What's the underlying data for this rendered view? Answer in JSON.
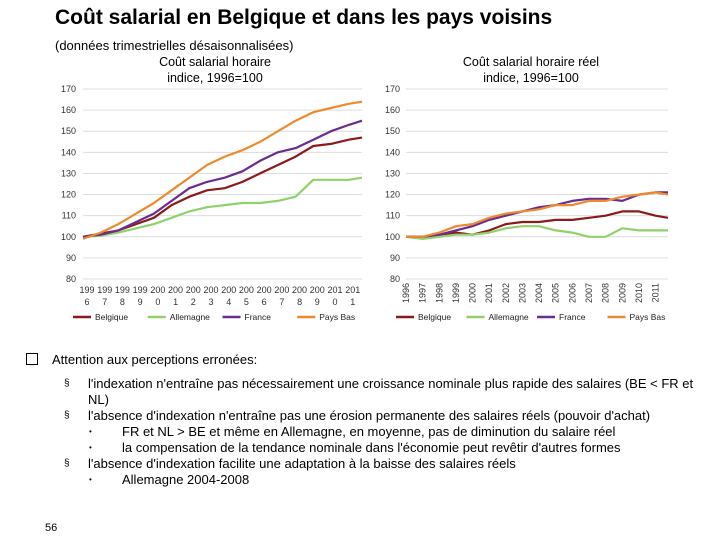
{
  "slide": {
    "title": "Coût salarial en Belgique et dans les pays voisins",
    "subtitle": "(données trimestrielles désaisonnalisées)",
    "page_number": "56"
  },
  "colors": {
    "Belgique": "#8b1a1a",
    "Allemagne": "#8fd16b",
    "France": "#6a2c8f",
    "Pays Bas": "#ee8a2e"
  },
  "chart_data": [
    {
      "type": "line",
      "title": "Coût salarial horaire indice, 1996=100",
      "title_lines": [
        "Coût salarial horaire",
        "indice, 1996=100"
      ],
      "ylim": [
        80,
        170
      ],
      "yticks": [
        "80",
        "90",
        "100",
        "110",
        "120",
        "130",
        "140",
        "150",
        "160",
        "170"
      ],
      "xlim": [
        1996,
        2011.75
      ],
      "xticks": [
        {
          "x": 1996,
          "l1": "199",
          "l2": "6"
        },
        {
          "x": 1997,
          "l1": "199",
          "l2": "7"
        },
        {
          "x": 1998,
          "l1": "199",
          "l2": "8"
        },
        {
          "x": 1999,
          "l1": "199",
          "l2": "9"
        },
        {
          "x": 2000,
          "l1": "200",
          "l2": "0"
        },
        {
          "x": 2001,
          "l1": "200",
          "l2": "1"
        },
        {
          "x": 2002,
          "l1": "200",
          "l2": "2"
        },
        {
          "x": 2003,
          "l1": "200",
          "l2": "3"
        },
        {
          "x": 2004,
          "l1": "200",
          "l2": "4"
        },
        {
          "x": 2005,
          "l1": "200",
          "l2": "5"
        },
        {
          "x": 2006,
          "l1": "200",
          "l2": "6"
        },
        {
          "x": 2007,
          "l1": "200",
          "l2": "7"
        },
        {
          "x": 2008,
          "l1": "200",
          "l2": "8"
        },
        {
          "x": 2009,
          "l1": "200",
          "l2": "9"
        },
        {
          "x": 2010,
          "l1": "201",
          "l2": "0"
        },
        {
          "x": 2011,
          "l1": "201",
          "l2": "1"
        }
      ],
      "series": [
        {
          "name": "Belgique",
          "x": [
            1996,
            1997,
            1998,
            1999,
            2000,
            2001,
            2002,
            2003,
            2004,
            2005,
            2006,
            2007,
            2008,
            2009,
            2010,
            2011,
            2011.75
          ],
          "values": [
            100,
            101.5,
            103,
            106,
            109,
            115,
            119,
            122,
            123,
            126,
            130,
            134,
            138,
            143,
            144,
            146,
            147
          ]
        },
        {
          "name": "Allemagne",
          "x": [
            1996,
            1997,
            1998,
            1999,
            2000,
            2001,
            2002,
            2003,
            2004,
            2005,
            2006,
            2007,
            2008,
            2009,
            2010,
            2011,
            2011.75
          ],
          "values": [
            100,
            100.5,
            102,
            104,
            106,
            109,
            112,
            114,
            115,
            116,
            116,
            117,
            119,
            127,
            127,
            127,
            128
          ]
        },
        {
          "name": "France",
          "x": [
            1996,
            1997,
            1998,
            1999,
            2000,
            2001,
            2002,
            2003,
            2004,
            2005,
            2006,
            2007,
            2008,
            2009,
            2010,
            2011,
            2011.75
          ],
          "values": [
            100,
            101,
            103,
            107,
            111,
            117,
            123,
            126,
            128,
            131,
            136,
            140,
            142,
            146,
            150,
            153,
            155
          ]
        },
        {
          "name": "Pays Bas",
          "x": [
            1996,
            1997,
            1998,
            1999,
            2000,
            2001,
            2002,
            2003,
            2004,
            2005,
            2006,
            2007,
            2008,
            2009,
            2010,
            2011,
            2011.75
          ],
          "values": [
            99,
            102,
            106,
            111,
            116,
            122,
            128,
            134,
            138,
            141,
            145,
            150,
            155,
            159,
            161,
            163,
            164
          ]
        }
      ],
      "legend": [
        "Belgique",
        "Allemagne",
        "France",
        "Pays Bas"
      ]
    },
    {
      "type": "line",
      "title": "Coût salarial horaire réel indice, 1996=100",
      "title_lines": [
        "Coût salarial horaire réel",
        "indice, 1996=100"
      ],
      "ylim": [
        80,
        170
      ],
      "yticks": [
        "80",
        "90",
        "100",
        "110",
        "120",
        "130",
        "140",
        "150",
        "160",
        "170"
      ],
      "xlim": [
        1996,
        2011.75
      ],
      "xticks": [
        {
          "x": 1996,
          "l1": "1996"
        },
        {
          "x": 1997,
          "l1": "1997"
        },
        {
          "x": 1998,
          "l1": "1998"
        },
        {
          "x": 1999,
          "l1": "1999"
        },
        {
          "x": 2000,
          "l1": "2000"
        },
        {
          "x": 2001,
          "l1": "2001"
        },
        {
          "x": 2002,
          "l1": "2002"
        },
        {
          "x": 2003,
          "l1": "2003"
        },
        {
          "x": 2004,
          "l1": "2004"
        },
        {
          "x": 2005,
          "l1": "2005"
        },
        {
          "x": 2006,
          "l1": "2006"
        },
        {
          "x": 2007,
          "l1": "2007"
        },
        {
          "x": 2008,
          "l1": "2008"
        },
        {
          "x": 2009,
          "l1": "2009"
        },
        {
          "x": 2010,
          "l1": "2010"
        },
        {
          "x": 2011,
          "l1": "2011"
        }
      ],
      "series": [
        {
          "name": "Belgique",
          "x": [
            1996,
            1997,
            1998,
            1999,
            2000,
            2001,
            2002,
            2003,
            2004,
            2005,
            2006,
            2007,
            2008,
            2009,
            2010,
            2011,
            2011.75
          ],
          "values": [
            100,
            100,
            101,
            102,
            101,
            103,
            106,
            107,
            107,
            108,
            108,
            109,
            110,
            112,
            112,
            110,
            109
          ]
        },
        {
          "name": "Allemagne",
          "x": [
            1996,
            1997,
            1998,
            1999,
            2000,
            2001,
            2002,
            2003,
            2004,
            2005,
            2006,
            2007,
            2008,
            2009,
            2010,
            2011,
            2011.75
          ],
          "values": [
            100,
            99,
            100,
            101,
            101,
            102,
            104,
            105,
            105,
            103,
            102,
            100,
            100,
            104,
            103,
            103,
            103
          ]
        },
        {
          "name": "France",
          "x": [
            1996,
            1997,
            1998,
            1999,
            2000,
            2001,
            2002,
            2003,
            2004,
            2005,
            2006,
            2007,
            2008,
            2009,
            2010,
            2011,
            2011.75
          ],
          "values": [
            100,
            100,
            101,
            103,
            105,
            108,
            110,
            112,
            114,
            115,
            117,
            118,
            118,
            117,
            120,
            121,
            121
          ]
        },
        {
          "name": "Pays Bas",
          "x": [
            1996,
            1997,
            1998,
            1999,
            2000,
            2001,
            2002,
            2003,
            2004,
            2005,
            2006,
            2007,
            2008,
            2009,
            2010,
            2011,
            2011.75
          ],
          "values": [
            100,
            100,
            102,
            105,
            106,
            109,
            111,
            112,
            113,
            115,
            115,
            117,
            117,
            119,
            120,
            121,
            120
          ]
        }
      ],
      "legend": [
        "Belgique",
        "Allemagne",
        "France",
        "Pays Bas"
      ]
    }
  ],
  "bullets": [
    {
      "level": 0,
      "text": "Attention aux perceptions erronées:"
    },
    {
      "level": 1,
      "text": "l'indexation n'entraîne pas nécessairement une croissance nominale plus rapide des salaires (BE < FR et NL)"
    },
    {
      "level": 1,
      "text": "l'absence d'indexation n'entraîne pas une érosion permanente des salaires réels (pouvoir d'achat)"
    },
    {
      "level": 2,
      "text": "FR et NL > BE et même en Allemagne, en moyenne, pas de diminution du salaire réel"
    },
    {
      "level": 2,
      "text": "la compensation de la tendance nominale dans l'économie peut revêtir d'autres formes"
    },
    {
      "level": 1,
      "text": "l'absence d'indexation facilite une adaptation à la baisse des salaires réels"
    },
    {
      "level": 2,
      "text": "Allemagne 2004-2008"
    }
  ],
  "bullet_markers": {
    "level1": "§",
    "level2": "•"
  }
}
